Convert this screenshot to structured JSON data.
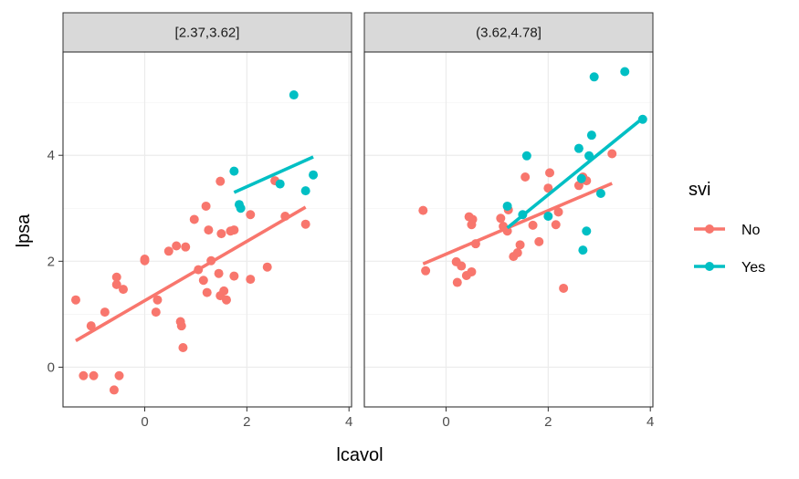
{
  "chart_data": {
    "type": "scatter",
    "xlabel": "lcavol",
    "ylabel": "lpsa",
    "xlim": [
      -1.6,
      4.05
    ],
    "ylim": [
      -0.75,
      5.95
    ],
    "x_ticks": [
      0,
      2,
      4
    ],
    "y_ticks": [
      0,
      2,
      4
    ],
    "grid": true,
    "legend": {
      "title": "svi",
      "position": "right",
      "entries": [
        {
          "label": "No",
          "color": "#F8766D"
        },
        {
          "label": "Yes",
          "color": "#00BFC4"
        }
      ]
    },
    "panels": [
      {
        "strip": "[2.37,3.62]",
        "series": [
          {
            "name": "No",
            "color": "#F8766D",
            "points": [
              [
                -1.35,
                1.27
              ],
              [
                -1.2,
                -0.16
              ],
              [
                -1.05,
                0.78
              ],
              [
                -1.0,
                -0.16
              ],
              [
                -0.78,
                1.04
              ],
              [
                -0.6,
                -0.43
              ],
              [
                -0.55,
                1.56
              ],
              [
                -0.55,
                1.7
              ],
              [
                -0.5,
                -0.16
              ],
              [
                -0.42,
                1.47
              ],
              [
                0.0,
                2.01
              ],
              [
                0.0,
                2.04
              ],
              [
                0.22,
                1.04
              ],
              [
                0.25,
                1.27
              ],
              [
                0.47,
                2.19
              ],
              [
                0.62,
                2.29
              ],
              [
                0.7,
                0.86
              ],
              [
                0.72,
                0.78
              ],
              [
                0.75,
                0.37
              ],
              [
                0.8,
                2.27
              ],
              [
                0.97,
                2.79
              ],
              [
                1.05,
                1.84
              ],
              [
                1.15,
                1.64
              ],
              [
                1.2,
                3.04
              ],
              [
                1.22,
                1.41
              ],
              [
                1.25,
                2.59
              ],
              [
                1.3,
                2.01
              ],
              [
                1.45,
                1.77
              ],
              [
                1.48,
                1.35
              ],
              [
                1.48,
                3.51
              ],
              [
                1.5,
                2.52
              ],
              [
                1.55,
                1.44
              ],
              [
                1.6,
                1.27
              ],
              [
                1.68,
                2.57
              ],
              [
                1.75,
                2.59
              ],
              [
                1.75,
                1.72
              ],
              [
                2.07,
                2.88
              ],
              [
                2.07,
                1.66
              ],
              [
                2.4,
                1.89
              ],
              [
                2.55,
                3.52
              ],
              [
                2.75,
                2.85
              ],
              [
                3.15,
                2.7
              ]
            ],
            "fit": [
              [
                -1.35,
                0.5
              ],
              [
                3.15,
                3.02
              ]
            ]
          },
          {
            "name": "Yes",
            "color": "#00BFC4",
            "points": [
              [
                1.75,
                3.7
              ],
              [
                1.85,
                3.07
              ],
              [
                1.88,
                3.0
              ],
              [
                2.65,
                3.46
              ],
              [
                2.92,
                5.14
              ],
              [
                3.15,
                3.33
              ],
              [
                3.3,
                3.63
              ]
            ],
            "fit": [
              [
                1.75,
                3.3
              ],
              [
                3.3,
                3.97
              ]
            ]
          }
        ]
      },
      {
        "strip": "(3.62,4.78]",
        "series": [
          {
            "name": "No",
            "color": "#F8766D",
            "points": [
              [
                -0.45,
                2.96
              ],
              [
                -0.4,
                1.82
              ],
              [
                0.2,
                1.99
              ],
              [
                0.22,
                1.6
              ],
              [
                0.3,
                1.91
              ],
              [
                0.4,
                1.73
              ],
              [
                0.45,
                2.84
              ],
              [
                0.5,
                2.69
              ],
              [
                0.5,
                1.8
              ],
              [
                0.52,
                2.79
              ],
              [
                0.58,
                2.33
              ],
              [
                1.07,
                2.81
              ],
              [
                1.12,
                2.66
              ],
              [
                1.2,
                2.57
              ],
              [
                1.22,
                2.97
              ],
              [
                1.32,
                2.09
              ],
              [
                1.4,
                2.16
              ],
              [
                1.45,
                2.31
              ],
              [
                1.55,
                3.59
              ],
              [
                1.7,
                2.68
              ],
              [
                1.82,
                2.37
              ],
              [
                2.0,
                3.38
              ],
              [
                2.03,
                3.67
              ],
              [
                2.15,
                2.69
              ],
              [
                2.2,
                2.93
              ],
              [
                2.3,
                1.49
              ],
              [
                2.6,
                3.43
              ],
              [
                2.68,
                3.59
              ],
              [
                2.75,
                3.52
              ],
              [
                3.25,
                4.03
              ]
            ],
            "fit": [
              [
                -0.45,
                1.95
              ],
              [
                3.25,
                3.47
              ]
            ]
          },
          {
            "name": "Yes",
            "color": "#00BFC4",
            "points": [
              [
                1.2,
                3.04
              ],
              [
                1.5,
                2.88
              ],
              [
                1.58,
                3.99
              ],
              [
                2.0,
                2.85
              ],
              [
                2.6,
                4.13
              ],
              [
                2.65,
                3.56
              ],
              [
                2.68,
                2.21
              ],
              [
                2.75,
                2.57
              ],
              [
                2.8,
                3.99
              ],
              [
                2.85,
                4.38
              ],
              [
                2.9,
                5.48
              ],
              [
                3.03,
                3.28
              ],
              [
                3.5,
                5.58
              ],
              [
                3.85,
                4.68
              ]
            ],
            "fit": [
              [
                1.2,
                2.63
              ],
              [
                3.85,
                4.7
              ]
            ]
          }
        ]
      }
    ]
  }
}
